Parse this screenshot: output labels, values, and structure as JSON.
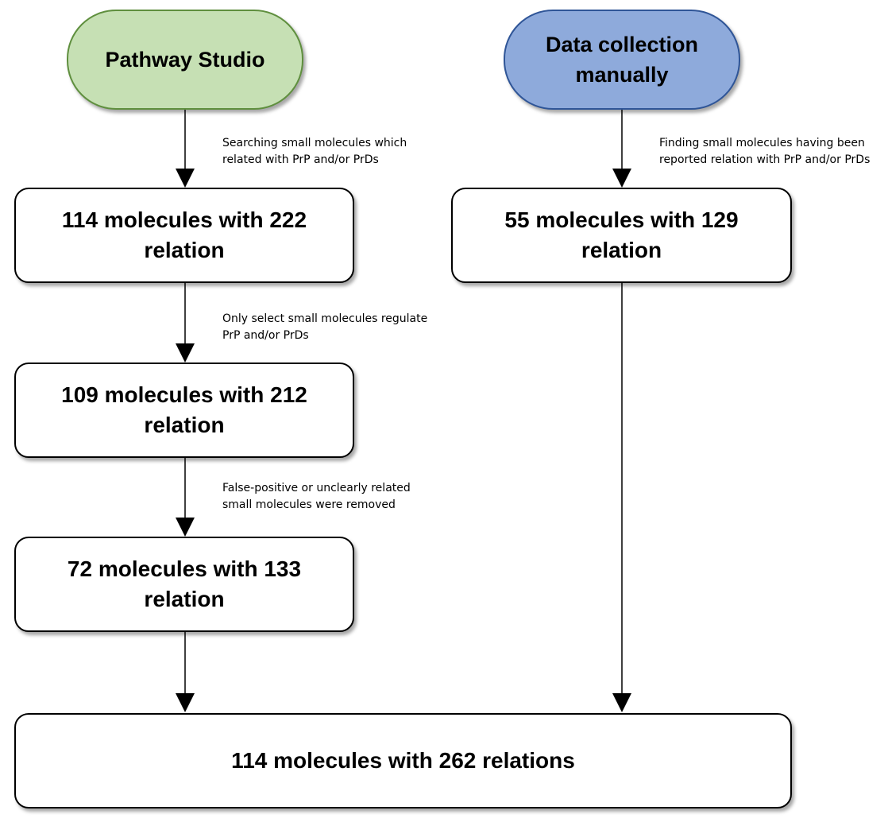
{
  "sources": {
    "left": "Pathway Studio",
    "right_line1": "Data collection",
    "right_line2": "manually"
  },
  "steps": {
    "left1_line1": "114 molecules with 222",
    "left1_line2": "relation",
    "left2_line1": "109 molecules with 212",
    "left2_line2": "relation",
    "left3_line1": "72 molecules with 133",
    "left3_line2": "relation",
    "right1_line1": "55 molecules with 129",
    "right1_line2": "relation",
    "final": "114 molecules with 262 relations"
  },
  "notes": {
    "left1_line1": "Searching small molecules which",
    "left1_line2": "related with PrP and/or PrDs",
    "left2_line1": "Only select small molecules regulate",
    "left2_line2": "PrP and/or PrDs",
    "left3_line1": "False-positive or unclearly related",
    "left3_line2": "small molecules were removed",
    "right1_line1": "Finding small molecules having been",
    "right1_line2": "reported relation with PrP and/or PrDs"
  },
  "colors": {
    "left_source_fill": "#c6e0b4",
    "right_source_fill": "#8eaadb",
    "arrow": "#000000"
  }
}
